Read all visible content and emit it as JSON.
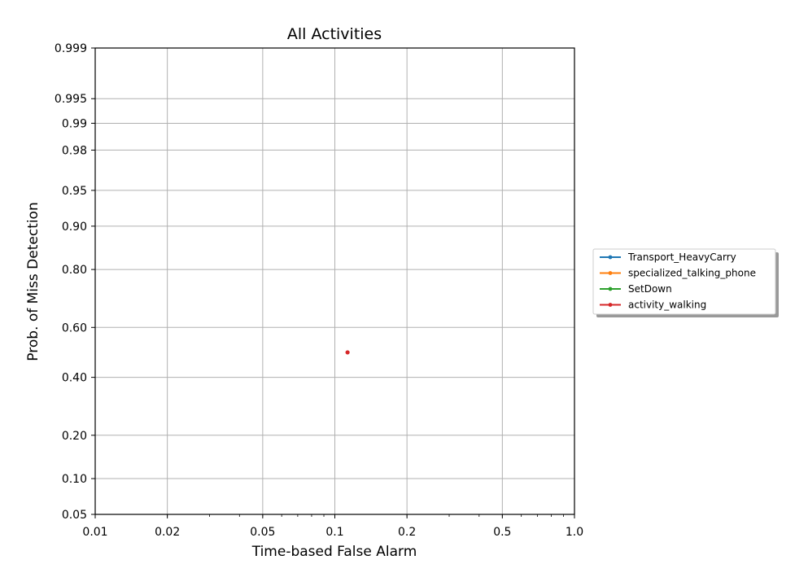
{
  "chart_data": {
    "type": "line",
    "title": "All Activities",
    "xlabel": "Time-based False Alarm",
    "ylabel": "Prob. of Miss Detection",
    "x_scale": "log",
    "y_scale": "normal-deviate",
    "xlim": [
      0.01,
      1.0
    ],
    "ylim": [
      0.05,
      0.999
    ],
    "x_ticks": [
      {
        "value": 0.01,
        "label": "0.01"
      },
      {
        "value": 0.02,
        "label": "0.02"
      },
      {
        "value": 0.05,
        "label": "0.05"
      },
      {
        "value": 0.1,
        "label": "0.1"
      },
      {
        "value": 0.2,
        "label": "0.2"
      },
      {
        "value": 0.5,
        "label": "0.5"
      },
      {
        "value": 1.0,
        "label": "1.0"
      }
    ],
    "y_ticks": [
      {
        "value": 0.05,
        "label": "0.05"
      },
      {
        "value": 0.1,
        "label": "0.10"
      },
      {
        "value": 0.2,
        "label": "0.20"
      },
      {
        "value": 0.4,
        "label": "0.40"
      },
      {
        "value": 0.6,
        "label": "0.60"
      },
      {
        "value": 0.8,
        "label": "0.80"
      },
      {
        "value": 0.9,
        "label": "0.90"
      },
      {
        "value": 0.95,
        "label": "0.95"
      },
      {
        "value": 0.98,
        "label": "0.98"
      },
      {
        "value": 0.99,
        "label": "0.99"
      },
      {
        "value": 0.995,
        "label": "0.995"
      },
      {
        "value": 0.999,
        "label": "0.999"
      }
    ],
    "grid": true,
    "legend_position": "right",
    "series": [
      {
        "name": "Transport_HeavyCarry",
        "color": "#1f77b4",
        "x": [],
        "y": []
      },
      {
        "name": "specialized_talking_phone",
        "color": "#ff7f0e",
        "x": [],
        "y": []
      },
      {
        "name": "SetDown",
        "color": "#2ca02c",
        "x": [],
        "y": []
      },
      {
        "name": "activity_walking",
        "color": "#d62728",
        "x": [
          0.113
        ],
        "y": [
          0.5
        ]
      }
    ]
  }
}
